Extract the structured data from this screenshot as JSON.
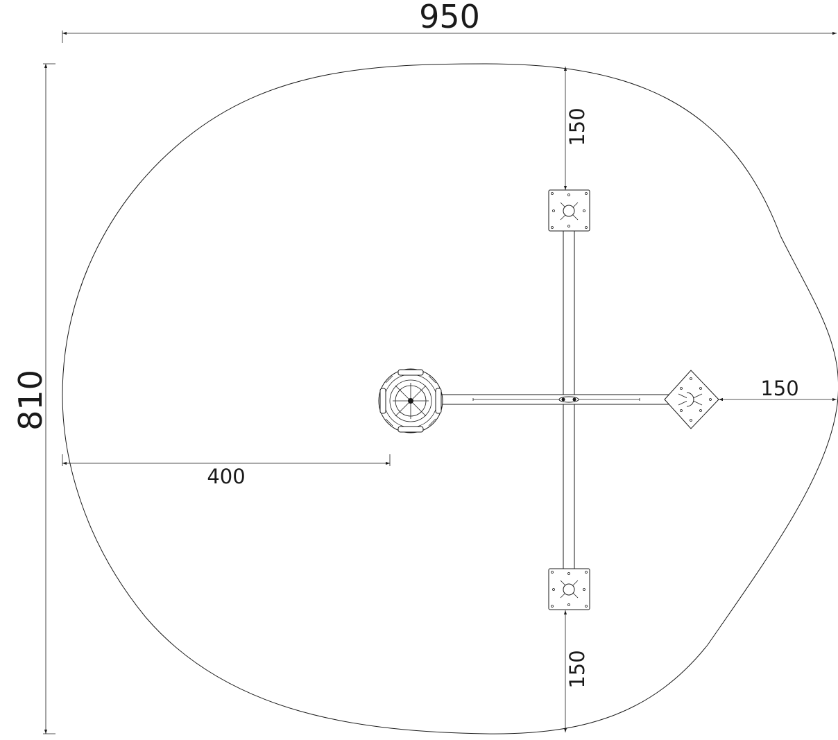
{
  "dimensions": {
    "overall_width": "950",
    "overall_height": "810",
    "top_clearance": "150",
    "bottom_clearance": "150",
    "right_clearance": "150",
    "left_to_center": "400"
  },
  "colors": {
    "line": "#1a1a1a",
    "background": "#ffffff"
  }
}
